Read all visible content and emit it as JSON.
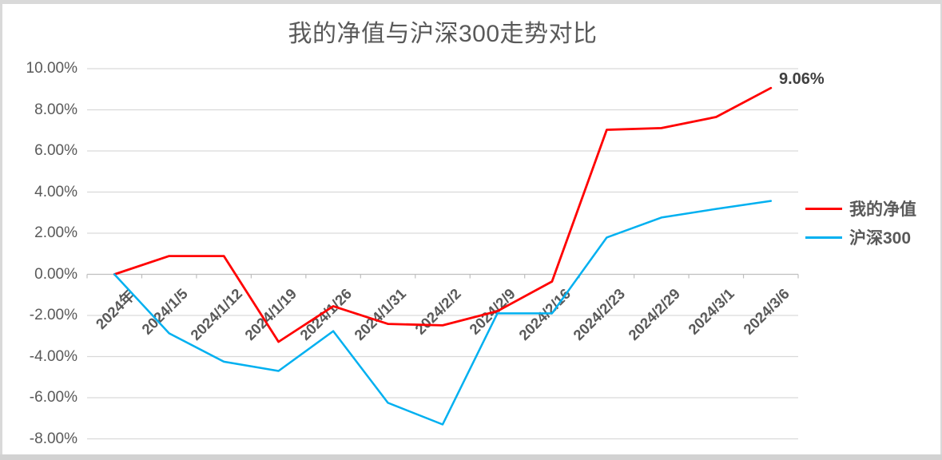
{
  "chart_data": {
    "type": "line",
    "title": "我的净值与沪深300走势对比",
    "categories": [
      "2024年",
      "2024/1/5",
      "2024/1/12",
      "2024/1/19",
      "2024/1/26",
      "2024/1/31",
      "2024/2/2",
      "2024/2/9",
      "2024/2/16",
      "2024/2/23",
      "2024/2/29",
      "2024/3/1",
      "2024/3/6"
    ],
    "series": [
      {
        "name": "我的净值",
        "color": "#ff0000",
        "values": [
          0,
          0.89,
          0.89,
          -3.28,
          -1.55,
          -2.41,
          -2.48,
          -1.79,
          -0.35,
          7.03,
          7.11,
          7.65,
          9.06
        ]
      },
      {
        "name": "沪深300",
        "color": "#00b0f0",
        "values": [
          0,
          -2.87,
          -4.25,
          -4.7,
          -2.76,
          -6.25,
          -7.3,
          -1.9,
          -1.9,
          1.79,
          2.76,
          3.18,
          3.57
        ]
      }
    ],
    "y_axis": {
      "min": -8,
      "max": 10,
      "step": 2,
      "unit": "percent"
    },
    "y_tick_labels": [
      "10.00%",
      "8.00%",
      "6.00%",
      "4.00%",
      "2.00%",
      "0.00%",
      "-2.00%",
      "-4.00%",
      "-6.00%",
      "-8.00%"
    ],
    "end_label": {
      "series": "我的净值",
      "value": "9.06%"
    },
    "legend_position": "right",
    "grid": true,
    "colors": {
      "grid": "#d9d9d9",
      "axis": "#bfbfbf",
      "text": "#595959",
      "end_label": "#404040",
      "window_border": "#d9d9d9"
    }
  }
}
